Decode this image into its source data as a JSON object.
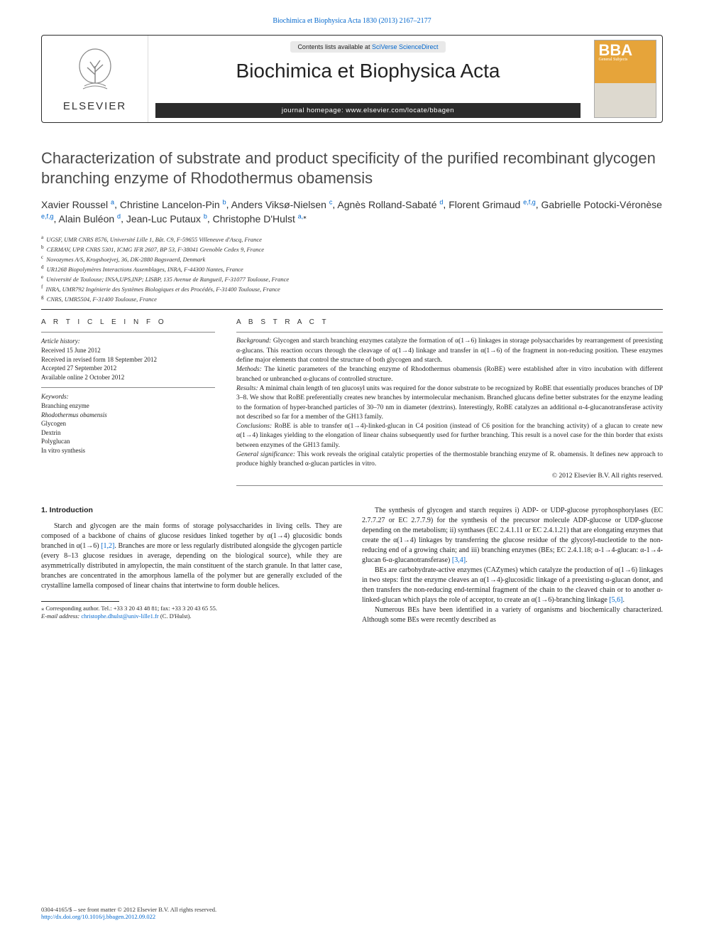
{
  "colors": {
    "link": "#0066cc",
    "text": "#222222",
    "banner_border": "#2b2b2b",
    "stripe_bg": "#2b2b2b",
    "cover_bg": "#e6a43a",
    "grey_pill": "#e9e9e9"
  },
  "topbar": {
    "citation": "Biochimica et Biophysica Acta 1830 (2013) 2167–2177"
  },
  "banner": {
    "elsevier": "ELSEVIER",
    "contents_prefix": "Contents lists available at ",
    "contents_link": "SciVerse ScienceDirect",
    "journal": "Biochimica et Biophysica Acta",
    "homepage_label": "journal homepage: ",
    "homepage_url": "www.elsevier.com/locate/bbagen",
    "cover_letters": "BBA",
    "cover_sub": "General Subjects"
  },
  "title": "Characterization of substrate and product specificity of the purified recombinant glycogen branching enzyme of Rhodothermus obamensis",
  "authors": [
    {
      "name": "Xavier Roussel",
      "aff": "a"
    },
    {
      "name": "Christine Lancelon-Pin",
      "aff": "b"
    },
    {
      "name": "Anders Viksø-Nielsen",
      "aff": "c"
    },
    {
      "name": "Agnès Rolland-Sabaté",
      "aff": "d"
    },
    {
      "name": "Florent Grimaud",
      "aff": "e,f,g"
    },
    {
      "name": "Gabrielle Potocki-Véronèse",
      "aff": "e,f,g"
    },
    {
      "name": "Alain Buléon",
      "aff": "d"
    },
    {
      "name": "Jean-Luc Putaux",
      "aff": "b"
    },
    {
      "name": "Christophe D'Hulst",
      "aff": "a,",
      "star": true
    }
  ],
  "affiliations": [
    {
      "key": "a",
      "text": "UGSF, UMR CNRS 8576, Université Lille 1, Bât. C9, F-59655 Villeneuve d'Ascq, France"
    },
    {
      "key": "b",
      "text": "CERMAV, UPR CNRS 5301, ICMG IFR 2607, BP 53, F-38041 Grenoble Cedex 9, France"
    },
    {
      "key": "c",
      "text": "Novozymes A/S, Krogshoejvej, 36, DK-2880 Bagsvaerd, Denmark"
    },
    {
      "key": "d",
      "text": "UR1268 Biopolymères Interactions Assemblages, INRA, F-44300 Nantes, France"
    },
    {
      "key": "e",
      "text": "Université de Toulouse; INSA,UPS,INP; LISBP, 135 Avenue de Rangueil, F-31077 Toulouse, France"
    },
    {
      "key": "f",
      "text": "INRA, UMR792 Ingénierie des Systèmes Biologiques et des Procédés, F-31400 Toulouse, France"
    },
    {
      "key": "g",
      "text": "CNRS, UMR5504, F-31400 Toulouse, France"
    }
  ],
  "article_info": {
    "heading": "A R T I C L E   I N F O",
    "history_label": "Article history:",
    "history": [
      "Received 15 June 2012",
      "Received in revised form 18 September 2012",
      "Accepted 27 September 2012",
      "Available online 2 October 2012"
    ],
    "keywords_label": "Keywords:",
    "keywords": [
      "Branching enzyme",
      "Rhodothermus obamensis",
      "Glycogen",
      "Dextrin",
      "Polyglucan",
      "In vitro synthesis"
    ]
  },
  "abstract": {
    "heading": "A B S T R A C T",
    "sections": {
      "background_label": "Background:",
      "background": " Glycogen and starch branching enzymes catalyze the formation of α(1→6) linkages in storage polysaccharides by rearrangement of preexisting α-glucans. This reaction occurs through the cleavage of α(1→4) linkage and transfer in α(1→6) of the fragment in non-reducing position. These enzymes define major elements that control the structure of both glycogen and starch.",
      "methods_label": "Methods:",
      "methods": " The kinetic parameters of the branching enzyme of Rhodothermus obamensis (RoBE) were established after in vitro incubation with different branched or unbranched α-glucans of controlled structure.",
      "results_label": "Results:",
      "results": " A minimal chain length of ten glucosyl units was required for the donor substrate to be recognized by RoBE that essentially produces branches of DP 3–8. We show that RoBE preferentially creates new branches by intermolecular mechanism. Branched glucans define better substrates for the enzyme leading to the formation of hyper-branched particles of 30–70 nm in diameter (dextrins). Interestingly, RoBE catalyzes an additional α-4-glucanotransferase activity not described so far for a member of the GH13 family.",
      "conclusions_label": "Conclusions:",
      "conclusions": " RoBE is able to transfer α(1→4)-linked-glucan in C4 position (instead of C6 position for the branching activity) of a glucan to create new α(1→4) linkages yielding to the elongation of linear chains subsequently used for further branching. This result is a novel case for the thin border that exists between enzymes of the GH13 family.",
      "significance_label": "General significance:",
      "significance": " This work reveals the original catalytic properties of the thermostable branching enzyme of R. obamensis. It defines new approach to produce highly branched α-glucan particles in vitro."
    },
    "copyright": "© 2012 Elsevier B.V. All rights reserved."
  },
  "intro": {
    "heading": "1. Introduction",
    "left_p1a": "Starch and glycogen are the main forms of storage polysaccharides in living cells. They are composed of a backbone of chains of glucose residues linked together by α(1→4) glucosidic bonds branched in α(1→6) ",
    "left_p1_ref": "[1,2]",
    "left_p1b": ". Branches are more or less regularly distributed alongside the glycogen particle (every 8–13 glucose residues in average, depending on the biological source), while they are asymmetrically distributed in amylopectin, the main constituent of the starch granule. In that latter case, branches are concentrated in the amorphous lamella of the polymer but are generally excluded of the crystalline lamella composed of linear chains that intertwine to form double helices.",
    "right_p1a": "The synthesis of glycogen and starch requires i) ADP- or UDP-glucose pyrophosphorylases (EC 2.7.7.27 or EC 2.7.7.9) for the synthesis of the precursor molecule ADP-glucose or UDP-glucose depending on the metabolism; ii) synthases (EC 2.4.1.11 or EC 2.4.1.21) that are elongating enzymes that create the α(1→4) linkages by transferring the glucose residue of the glycosyl-nucleotide to the non-reducing end of a growing chain; and iii) branching enzymes (BEs; EC 2.4.1.18; α-1→4-glucan: α-1→4-glucan 6-α-glucanotransferase) ",
    "right_p1_ref": "[3,4]",
    "right_p1b": ".",
    "right_p2a": "BEs are carbohydrate-active enzymes (CAZymes) which catalyze the production of α(1→6) linkages in two steps: first the enzyme cleaves an α(1→4)-glucosidic linkage of a preexisting α-glucan donor, and then transfers the non-reducing end-terminal fragment of the chain to the cleaved chain or to another α-linked-glucan which plays the role of acceptor, to create an α(1→6)-branching linkage ",
    "right_p2_ref": "[5,6]",
    "right_p2b": ".",
    "right_p3": "Numerous BEs have been identified in a variety of organisms and biochemically characterized. Although some BEs were recently described as"
  },
  "corresponding": {
    "star": "⁎",
    "line1": " Corresponding author. Tel.: +33 3 20 43 48 81; fax: +33 3 20 43 65 55.",
    "email_label": "E-mail address:",
    "email": " christophe.dhulst@univ-lille1.fr ",
    "tail": "(C. D'Hulst)."
  },
  "footer": {
    "issn": "0304-4165/$ – see front matter © 2012 Elsevier B.V. All rights reserved.",
    "doi": "http://dx.doi.org/10.1016/j.bbagen.2012.09.022"
  }
}
